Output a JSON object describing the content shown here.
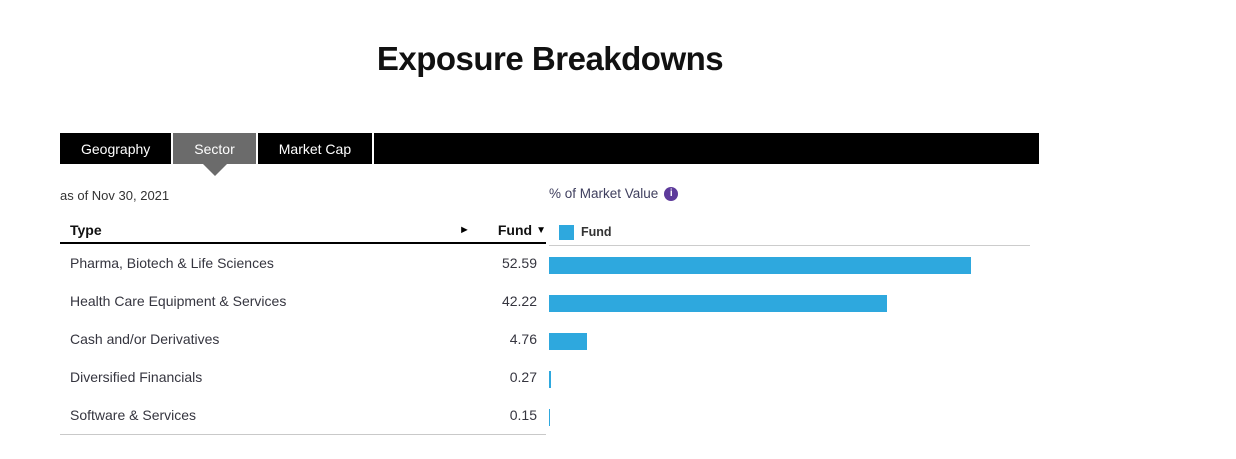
{
  "page": {
    "title": "Exposure Breakdowns"
  },
  "tabs": [
    {
      "label": "Geography",
      "selected": false
    },
    {
      "label": "Sector",
      "selected": true
    },
    {
      "label": "Market Cap",
      "selected": false
    }
  ],
  "meta": {
    "as_of": "as of Nov 30, 2021",
    "axis_label": "% of Market Value",
    "info_icon_glyph": "i"
  },
  "table": {
    "headers": {
      "type": "Type",
      "fund": "Fund",
      "sort_indicator": "▼",
      "scroll_arrow": "►"
    },
    "rows": [
      {
        "label": "Pharma, Biotech & Life Sciences",
        "value": "52.59"
      },
      {
        "label": "Health Care Equipment & Services",
        "value": "42.22"
      },
      {
        "label": "Cash and/or Derivatives",
        "value": "4.76"
      },
      {
        "label": "Diversified Financials",
        "value": "0.27"
      },
      {
        "label": "Software & Services",
        "value": "0.15"
      }
    ]
  },
  "chart_data": {
    "type": "bar",
    "orientation": "horizontal",
    "title": "% of Market Value",
    "categories": [
      "Pharma, Biotech & Life Sciences",
      "Health Care Equipment & Services",
      "Cash and/or Derivatives",
      "Diversified Financials",
      "Software & Services"
    ],
    "series": [
      {
        "name": "Fund",
        "values": [
          52.59,
          42.22,
          4.76,
          0.27,
          0.15
        ],
        "color": "#2ea8de"
      }
    ],
    "xlim": [
      0,
      60
    ],
    "grid": false,
    "legend_position": "top-left",
    "legend": [
      "Fund"
    ]
  },
  "colors": {
    "bar_blue": "#2ea8de",
    "tab_bar_black": "#000000",
    "tab_selected_gray": "#6b6b6b",
    "info_icon_purple": "#5d3a9b",
    "text_dark": "#35353f",
    "divider_gray": "#c9c9c9"
  }
}
